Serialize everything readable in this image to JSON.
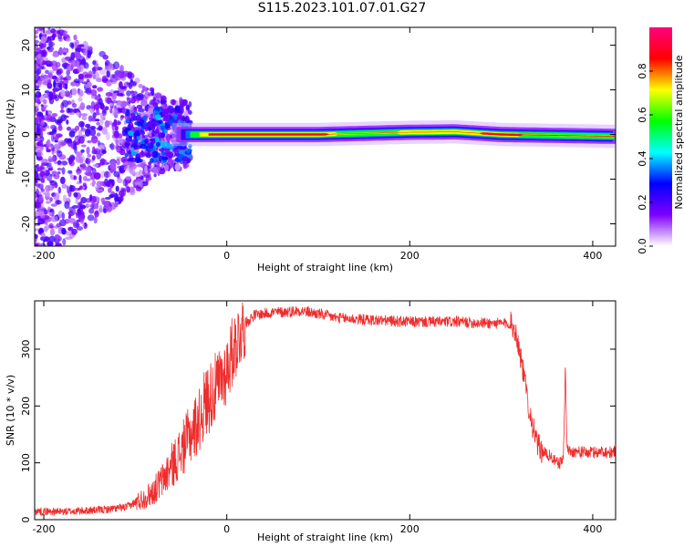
{
  "title": "S115.2023.101.07.01.G27",
  "chart_data": [
    {
      "type": "heatmap",
      "xlabel": "Height of straight line (km)",
      "ylabel": "Frequency (Hz)",
      "xlim": [
        -210,
        425
      ],
      "ylim": [
        -25,
        24
      ],
      "xticks": [
        -200,
        0,
        200,
        400
      ],
      "yticks": [
        -20,
        -10,
        0,
        10,
        20
      ],
      "grid": false,
      "ridge_center_hz": [
        {
          "x": -100,
          "y": 0.0
        },
        {
          "x": 0,
          "y": 0.0
        },
        {
          "x": 100,
          "y": 0.0
        },
        {
          "x": 200,
          "y": 0.5
        },
        {
          "x": 250,
          "y": 0.6
        },
        {
          "x": 300,
          "y": 0.0
        },
        {
          "x": 420,
          "y": -0.4
        }
      ],
      "colorbar": {
        "label": "Normalized spectral amplitude",
        "range": [
          0,
          1
        ],
        "ticks": [
          "0.0",
          "0.2",
          "0.4",
          "0.6",
          "0.8"
        ],
        "colors": [
          "#ffffff",
          "#7f00ff",
          "#0000ff",
          "#00ffff",
          "#00ff00",
          "#ffff00",
          "#ff0000",
          "#ff0080"
        ]
      }
    },
    {
      "type": "line",
      "xlabel": "Height of straight line (km)",
      "ylabel": "SNR (10 * v/v)",
      "xlim": [
        -210,
        425
      ],
      "ylim": [
        0,
        385
      ],
      "xticks": [
        -200,
        0,
        200,
        400
      ],
      "yticks": [
        0,
        100,
        200,
        300
      ],
      "grid": false,
      "color": "#ee2d2d",
      "x": [
        -210,
        -180,
        -150,
        -130,
        -110,
        -100,
        -90,
        -80,
        -70,
        -60,
        -50,
        -40,
        -30,
        -25,
        -20,
        -15,
        -10,
        -5,
        0,
        5,
        10,
        15,
        20,
        30,
        40,
        50,
        60,
        80,
        100,
        120,
        150,
        200,
        250,
        300,
        310,
        315,
        320,
        325,
        330,
        335,
        340,
        345,
        350,
        355,
        360,
        365,
        368,
        370,
        372,
        375,
        380,
        390,
        400,
        410,
        420,
        425
      ],
      "y": [
        15,
        14,
        16,
        18,
        22,
        30,
        38,
        50,
        70,
        95,
        120,
        150,
        175,
        200,
        215,
        225,
        235,
        250,
        265,
        290,
        310,
        330,
        345,
        360,
        362,
        365,
        365,
        368,
        362,
        355,
        352,
        348,
        348,
        345,
        345,
        335,
        300,
        250,
        200,
        160,
        130,
        120,
        115,
        110,
        100,
        100,
        110,
        270,
        125,
        120,
        120,
        118,
        118,
        120,
        118,
        120
      ]
    }
  ]
}
